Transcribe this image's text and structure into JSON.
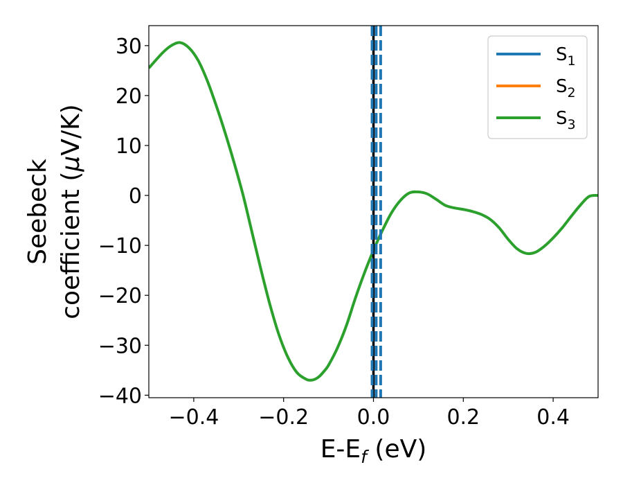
{
  "chart_data": {
    "type": "line",
    "title": "",
    "xlabel": {
      "main": "E-E",
      "sub": "f",
      "unit": " (eV)"
    },
    "ylabel": {
      "line1": "Seebeck",
      "line2": "coefficient  (",
      "mu": "μ",
      "unit": "V/K)"
    },
    "xlim": [
      -0.5,
      0.5
    ],
    "ylim": [
      -40.5,
      34
    ],
    "xticks": [
      -0.4,
      -0.2,
      0.0,
      0.2,
      0.4
    ],
    "xtick_labels": [
      "−0.4",
      "−0.2",
      "0.0",
      "0.2",
      "0.4"
    ],
    "yticks": [
      -40,
      -30,
      -20,
      -10,
      0,
      10,
      20,
      30
    ],
    "ytick_labels": [
      "−40",
      "−30",
      "−20",
      "−10",
      "0",
      "10",
      "20",
      "30"
    ],
    "grid": false,
    "legend_position": "top-right",
    "series": [
      {
        "name": "S",
        "sub": "1",
        "color": "#1f77b4"
      },
      {
        "name": "S",
        "sub": "2",
        "color": "#ff7f0e"
      },
      {
        "name": "S",
        "sub": "3",
        "color": "#2ca02c",
        "x": [
          -0.5,
          -0.47,
          -0.45,
          -0.43,
          -0.41,
          -0.39,
          -0.37,
          -0.35,
          -0.33,
          -0.31,
          -0.29,
          -0.27,
          -0.25,
          -0.23,
          -0.21,
          -0.19,
          -0.17,
          -0.15,
          -0.14,
          -0.13,
          -0.12,
          -0.11,
          -0.1,
          -0.08,
          -0.06,
          -0.04,
          -0.02,
          0.0,
          0.02,
          0.04,
          0.06,
          0.08,
          0.1,
          0.12,
          0.14,
          0.16,
          0.18,
          0.2,
          0.22,
          0.24,
          0.26,
          0.28,
          0.3,
          0.32,
          0.34,
          0.36,
          0.38,
          0.4,
          0.42,
          0.44,
          0.46,
          0.48,
          0.5
        ],
        "y": [
          25.5,
          28.5,
          30.0,
          30.6,
          29.5,
          27.0,
          23.0,
          18.0,
          12.5,
          6.5,
          0.0,
          -7.5,
          -15.0,
          -22.0,
          -28.0,
          -32.5,
          -35.5,
          -36.8,
          -37.0,
          -36.8,
          -36.2,
          -35.2,
          -34.0,
          -30.5,
          -26.0,
          -20.5,
          -15.5,
          -11.0,
          -7.0,
          -3.5,
          -1.0,
          0.5,
          0.7,
          0.3,
          -0.8,
          -2.0,
          -2.5,
          -2.8,
          -3.2,
          -3.8,
          -4.8,
          -6.5,
          -8.8,
          -10.7,
          -11.6,
          -11.4,
          -10.2,
          -8.5,
          -6.5,
          -4.2,
          -2.0,
          -0.2,
          0.0
        ]
      }
    ],
    "vlines": [
      {
        "x": 0.0,
        "color": "#000000",
        "style": "solid"
      },
      {
        "x": -0.003,
        "color": "#1f77b4",
        "style": "dashed"
      },
      {
        "x": 0.006,
        "color": "#1f77b4",
        "style": "dashed"
      },
      {
        "x": 0.016,
        "color": "#1f77b4",
        "style": "dashed"
      }
    ]
  }
}
